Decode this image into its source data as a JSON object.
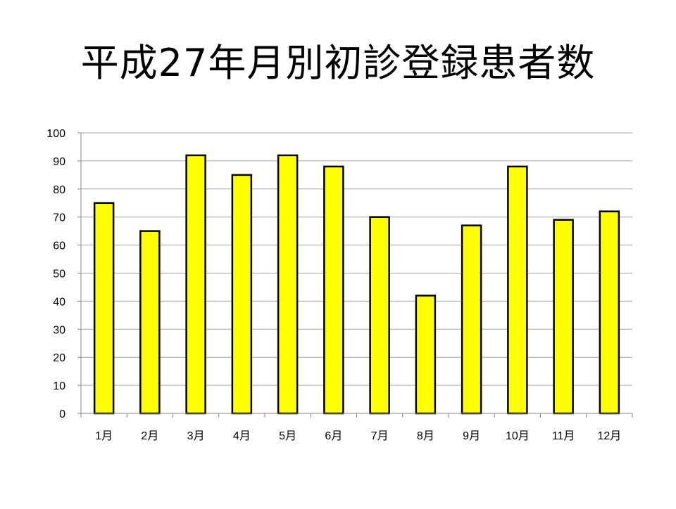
{
  "slide": {
    "title": "平成27年月別初診登録患者数"
  },
  "colors": {
    "bar_fill": "#FFFF00",
    "bar_stroke": "#000000",
    "gridline": "#A6A6A6",
    "axis": "#868686",
    "text": "#000000"
  },
  "chart_data": {
    "type": "bar",
    "title": "平成27年月別初診登録患者数",
    "xlabel": "",
    "ylabel": "",
    "categories": [
      "1月",
      "2月",
      "3月",
      "4月",
      "5月",
      "6月",
      "7月",
      "8月",
      "9月",
      "10月",
      "11月",
      "12月"
    ],
    "values": [
      75,
      65,
      92,
      85,
      92,
      88,
      70,
      42,
      67,
      88,
      69,
      72
    ],
    "ylim": [
      0,
      100
    ],
    "yticks": [
      "0",
      "10",
      "20",
      "30",
      "40",
      "50",
      "60",
      "70",
      "80",
      "90",
      "100"
    ],
    "grid": true,
    "legend": "none"
  }
}
